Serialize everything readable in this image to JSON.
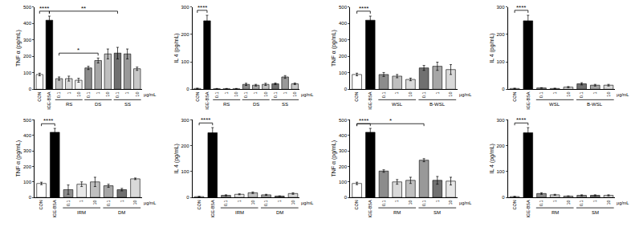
{
  "chart_data": [
    {
      "type": "bar",
      "ylabel": "TNF α (pg/mL)",
      "categories": [
        "CON",
        "IGE-BSA",
        "0.1",
        "1",
        "10",
        "0.1",
        "1",
        "10",
        "0.1",
        "1",
        "10"
      ],
      "values": [
        90,
        420,
        65,
        65,
        55,
        130,
        175,
        215,
        220,
        215,
        125
      ],
      "errors": [
        8,
        25,
        10,
        15,
        12,
        10,
        15,
        30,
        35,
        30,
        10
      ],
      "colors": [
        "#ffffff",
        "#000000",
        "#bfbfbf",
        "#d9d9d9",
        "#f0f0f0",
        "#8c8c8c",
        "#a6a6a6",
        "#bfbfbf",
        "#707070",
        "#999999",
        "#c8c8c8"
      ],
      "ylim": [
        0,
        500
      ],
      "yticks": [
        0,
        100,
        200,
        300,
        400,
        500
      ],
      "groups": [
        {
          "label": "RS",
          "from": 2,
          "to": 4
        },
        {
          "label": "DS",
          "from": 5,
          "to": 7
        },
        {
          "label": "SS",
          "from": 8,
          "to": 10
        }
      ],
      "unit": "μg/mL",
      "significance": [
        {
          "from": 0,
          "to": 1,
          "label": "****"
        },
        {
          "from": 1,
          "to": 8,
          "label": "**"
        },
        {
          "from": 2,
          "to": 6,
          "label": "*"
        }
      ]
    },
    {
      "type": "bar",
      "ylabel": "IL 4 (pg/mL)",
      "categories": [
        "CON",
        "IGE-BSA",
        "0.1",
        "1",
        "10",
        "0.1",
        "1",
        "10",
        "0.1",
        "1",
        "10"
      ],
      "values": [
        3,
        250,
        2,
        2,
        2,
        18,
        15,
        18,
        20,
        45,
        20
      ],
      "errors": [
        1,
        20,
        1,
        1,
        1,
        4,
        3,
        4,
        3,
        5,
        3
      ],
      "colors": [
        "#ffffff",
        "#000000",
        "#bfbfbf",
        "#d9d9d9",
        "#f0f0f0",
        "#8c8c8c",
        "#a6a6a6",
        "#bfbfbf",
        "#707070",
        "#999999",
        "#c8c8c8"
      ],
      "ylim": [
        0,
        300
      ],
      "yticks": [
        0,
        100,
        200,
        300
      ],
      "groups": [
        {
          "label": "RS",
          "from": 2,
          "to": 4
        },
        {
          "label": "DS",
          "from": 5,
          "to": 7
        },
        {
          "label": "SS",
          "from": 8,
          "to": 10
        }
      ],
      "unit": "μg/mL",
      "significance": [
        {
          "from": 0,
          "to": 1,
          "label": "****"
        }
      ]
    },
    {
      "type": "bar",
      "ylabel": "TNF α (pg/mL)",
      "categories": [
        "CON",
        "IGE-BSA",
        "0.1",
        "1",
        "10",
        "0.1",
        "1",
        "10"
      ],
      "values": [
        90,
        420,
        90,
        80,
        60,
        130,
        140,
        120
      ],
      "errors": [
        8,
        25,
        12,
        10,
        8,
        15,
        25,
        30
      ],
      "colors": [
        "#ffffff",
        "#000000",
        "#8c8c8c",
        "#bfbfbf",
        "#d9d9d9",
        "#707070",
        "#a6a6a6",
        "#d9d9d9"
      ],
      "ylim": [
        0,
        500
      ],
      "yticks": [
        0,
        100,
        200,
        300,
        400,
        500
      ],
      "groups": [
        {
          "label": "WSL",
          "from": 2,
          "to": 4
        },
        {
          "label": "B-WSL",
          "from": 5,
          "to": 7
        }
      ],
      "unit": "μg/mL",
      "significance": [
        {
          "from": 0,
          "to": 1,
          "label": "****"
        }
      ]
    },
    {
      "type": "bar",
      "ylabel": "IL 4 (pg/mL)",
      "categories": [
        "CON",
        "IGE-BSA",
        "0.1",
        "1",
        "10",
        "0.1",
        "1",
        "10"
      ],
      "values": [
        3,
        250,
        5,
        3,
        8,
        20,
        15,
        15
      ],
      "errors": [
        1,
        20,
        1,
        1,
        2,
        4,
        3,
        3
      ],
      "colors": [
        "#ffffff",
        "#000000",
        "#8c8c8c",
        "#bfbfbf",
        "#d9d9d9",
        "#707070",
        "#a6a6a6",
        "#d9d9d9"
      ],
      "ylim": [
        0,
        300
      ],
      "yticks": [
        0,
        100,
        200,
        300
      ],
      "groups": [
        {
          "label": "WSL",
          "from": 2,
          "to": 4
        },
        {
          "label": "B-WSL",
          "from": 5,
          "to": 7
        }
      ],
      "unit": "μg/mL",
      "significance": [
        {
          "from": 0,
          "to": 1,
          "label": "****"
        }
      ]
    },
    {
      "type": "bar",
      "ylabel": "TNF α (pg/mL)",
      "categories": [
        "CON",
        "IGE-BSA",
        "0.1",
        "1",
        "10",
        "0.1",
        "1",
        "10"
      ],
      "values": [
        90,
        420,
        50,
        85,
        100,
        75,
        50,
        120
      ],
      "errors": [
        8,
        25,
        30,
        15,
        30,
        10,
        8,
        5
      ],
      "colors": [
        "#ffffff",
        "#000000",
        "#8c8c8c",
        "#e8e8e8",
        "#bfbfbf",
        "#a6a6a6",
        "#707070",
        "#d9d9d9"
      ],
      "ylim": [
        0,
        500
      ],
      "yticks": [
        0,
        100,
        200,
        300,
        400,
        500
      ],
      "groups": [
        {
          "label": "IRM",
          "from": 2,
          "to": 4
        },
        {
          "label": "DM",
          "from": 5,
          "to": 7
        }
      ],
      "unit": "μg/mL",
      "significance": [
        {
          "from": 0,
          "to": 1,
          "label": "****"
        }
      ]
    },
    {
      "type": "bar",
      "ylabel": "IL 4 (pg/mL)",
      "categories": [
        "CON",
        "IGE-BSA",
        "0.1",
        "1",
        "10",
        "0.1",
        "1",
        "10"
      ],
      "values": [
        3,
        250,
        8,
        12,
        18,
        10,
        5,
        15
      ],
      "errors": [
        1,
        20,
        2,
        2,
        3,
        2,
        1,
        3
      ],
      "colors": [
        "#ffffff",
        "#000000",
        "#8c8c8c",
        "#e8e8e8",
        "#bfbfbf",
        "#a6a6a6",
        "#707070",
        "#d9d9d9"
      ],
      "ylim": [
        0,
        300
      ],
      "yticks": [
        0,
        100,
        200,
        300
      ],
      "groups": [
        {
          "label": "IRM",
          "from": 2,
          "to": 4
        },
        {
          "label": "DM",
          "from": 5,
          "to": 7
        }
      ],
      "unit": "μg/mL",
      "significance": [
        {
          "from": 0,
          "to": 1,
          "label": "****"
        }
      ]
    },
    {
      "type": "bar",
      "ylabel": "TNF α (pg/mL)",
      "categories": [
        "CON",
        "IGE-BSA",
        "0.1",
        "1",
        "10",
        "0.1",
        "1",
        "10"
      ],
      "values": [
        90,
        420,
        170,
        100,
        110,
        240,
        110,
        105
      ],
      "errors": [
        8,
        25,
        8,
        15,
        20,
        10,
        25,
        25
      ],
      "colors": [
        "#ffffff",
        "#000000",
        "#8c8c8c",
        "#d9d9d9",
        "#bfbfbf",
        "#999999",
        "#707070",
        "#e8e8e8"
      ],
      "ylim": [
        0,
        500
      ],
      "yticks": [
        0,
        100,
        200,
        300,
        400,
        500
      ],
      "groups": [
        {
          "label": "RM",
          "from": 2,
          "to": 4
        },
        {
          "label": "SM",
          "from": 5,
          "to": 7
        }
      ],
      "unit": "μg/mL",
      "significance": [
        {
          "from": 0,
          "to": 1,
          "label": "****"
        },
        {
          "from": 0,
          "to": 5,
          "label": "*"
        }
      ]
    },
    {
      "type": "bar",
      "ylabel": "IL 4 (pg/mL)",
      "categories": [
        "CON",
        "IGE-BSA",
        "0.1",
        "1",
        "10",
        "0.1",
        "1",
        "10"
      ],
      "values": [
        3,
        250,
        15,
        10,
        5,
        8,
        8,
        8
      ],
      "errors": [
        1,
        20,
        3,
        2,
        1,
        2,
        2,
        2
      ],
      "colors": [
        "#ffffff",
        "#000000",
        "#8c8c8c",
        "#d9d9d9",
        "#bfbfbf",
        "#999999",
        "#707070",
        "#e8e8e8"
      ],
      "ylim": [
        0,
        300
      ],
      "yticks": [
        0,
        100,
        200,
        300
      ],
      "groups": [
        {
          "label": "RM",
          "from": 2,
          "to": 4
        },
        {
          "label": "SM",
          "from": 5,
          "to": 7
        }
      ],
      "unit": "μg/mL",
      "significance": [
        {
          "from": 0,
          "to": 1,
          "label": "****"
        }
      ]
    }
  ]
}
